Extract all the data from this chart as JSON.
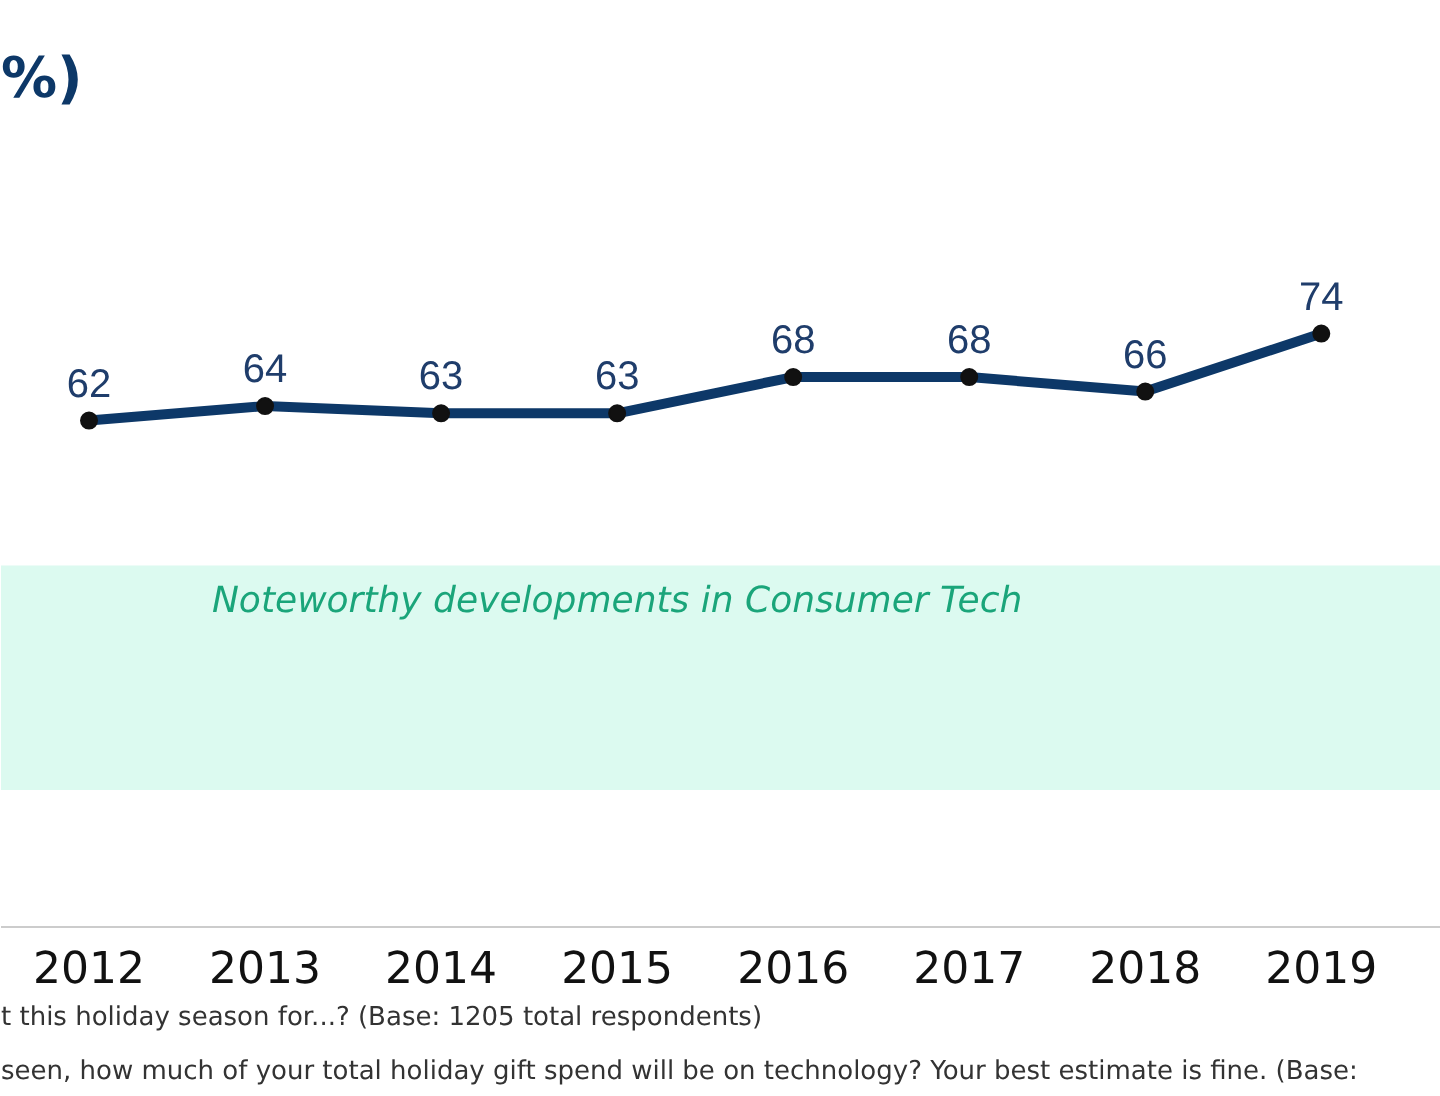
{
  "chart_data": {
    "type": "line",
    "title": "%)",
    "categories": [
      "2012",
      "2013",
      "2014",
      "2015",
      "2016",
      "2017",
      "2018",
      "2019"
    ],
    "series": [
      {
        "color": "#0d3868",
        "values": [
          62,
          64,
          63,
          63,
          68,
          68,
          66,
          74
        ]
      }
    ],
    "tick_labels": "x",
    "grid": false,
    "marker": "circle",
    "line_style": "solid",
    "data_labels": true,
    "bands": [
      {
        "axis": "y",
        "from": 11,
        "to": 42,
        "label": "Noteworthy developments in Consumer Tech",
        "color": "#dcfaf0"
      }
    ],
    "annotations": [
      "t this holiday season for...? (Base: 1205 total respondents)",
      "seen, how much of your total holiday gift spend will be on technology? Your best estimate is fine. (Base:"
    ]
  }
}
